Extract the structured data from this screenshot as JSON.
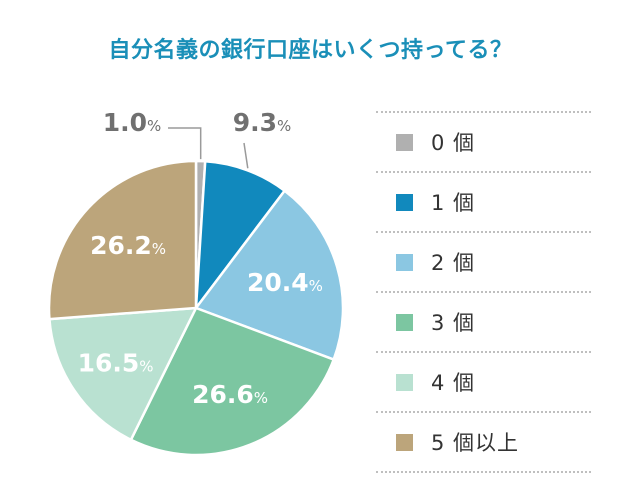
{
  "title": "自分名義の銀行口座はいくつ持ってる？",
  "chart_data": {
    "type": "pie",
    "title": "自分名義の銀行口座はいくつ持ってる？",
    "unit": "%",
    "legend_position": "right",
    "slices": [
      {
        "label": "0 個",
        "value": 1.0,
        "value_text": "1.0",
        "color": "#b0b0b0",
        "label_color": "#707070"
      },
      {
        "label": "1 個",
        "value": 9.3,
        "value_text": "9.3",
        "color": "#1189bd",
        "label_color": "#707070"
      },
      {
        "label": "2 個",
        "value": 20.4,
        "value_text": "20.4",
        "color": "#8bc7e2",
        "label_color": "#ffffff"
      },
      {
        "label": "3 個",
        "value": 26.6,
        "value_text": "26.6",
        "color": "#7cc6a1",
        "label_color": "#ffffff"
      },
      {
        "label": "4 個",
        "value": 16.5,
        "value_text": "16.5",
        "color": "#b9e1d1",
        "label_color": "#ffffff"
      },
      {
        "label": "5 個以上",
        "value": 26.2,
        "value_text": "26.2",
        "color": "#bca57b",
        "label_color": "#ffffff"
      }
    ]
  }
}
